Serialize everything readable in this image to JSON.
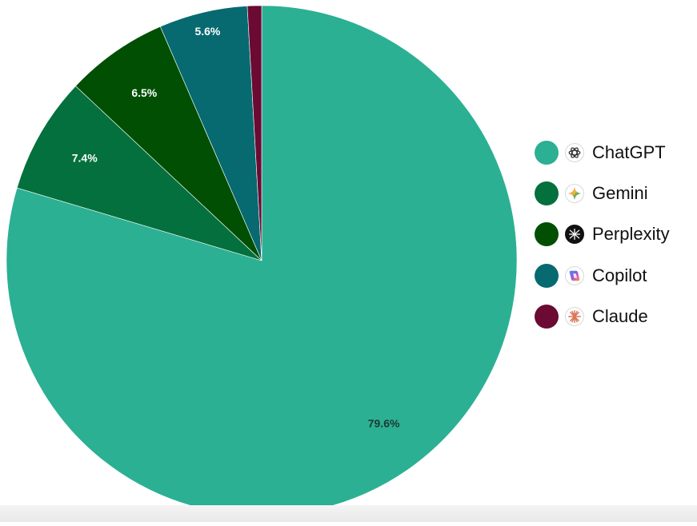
{
  "chart_data": {
    "type": "pie",
    "categories": [
      "ChatGPT",
      "Gemini",
      "Perplexity",
      "Copilot",
      "Claude"
    ],
    "values": [
      79.6,
      7.4,
      6.5,
      5.6,
      0.9
    ],
    "data_labels": [
      "79.6%",
      "7.4%",
      "6.5%",
      "5.6%",
      ""
    ],
    "colors": [
      "#2bb093",
      "#04703d",
      "#004f03",
      "#066a70",
      "#6b0a32"
    ],
    "label_colors": [
      "#1d3b33",
      "#ffffff",
      "#ffffff",
      "#ffffff",
      "#ffffff"
    ],
    "start_angle_deg": 0,
    "direction": "clockwise",
    "legend_position": "right",
    "legend_icons": [
      "chatgpt-logo-icon",
      "gemini-logo-icon",
      "perplexity-logo-icon",
      "copilot-logo-icon",
      "claude-logo-icon"
    ]
  }
}
